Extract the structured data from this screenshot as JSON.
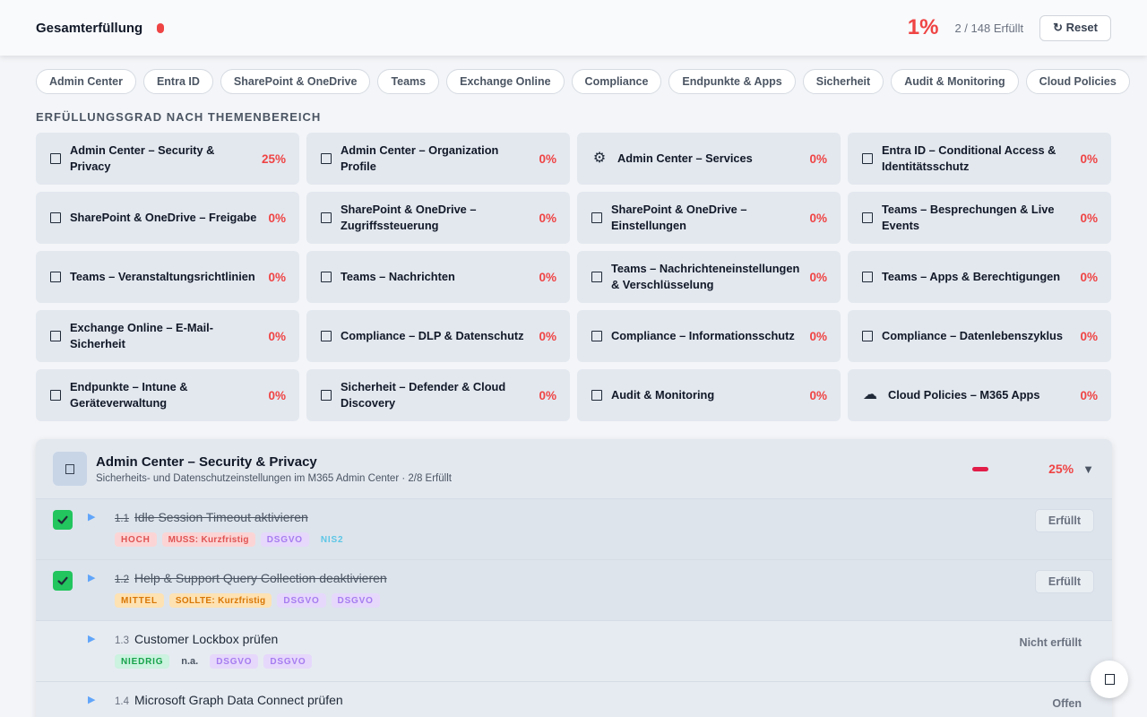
{
  "header": {
    "title": "Gesamterfüllung",
    "percent": "1%",
    "count": "2 / 148 Erfüllt",
    "reset_label": "↻ Reset"
  },
  "tabs": [
    "Admin Center",
    "Entra ID",
    "SharePoint & OneDrive",
    "Teams",
    "Exchange Online",
    "Compliance",
    "Endpunkte & Apps",
    "Sicherheit",
    "Audit & Monitoring",
    "Cloud Policies"
  ],
  "section_title": "ERFÜLLUNGSGRAD NACH THEMENBEREICH",
  "cards": [
    {
      "label": "Admin Center – Security & Privacy",
      "pct": "25%",
      "icon": "square-icon"
    },
    {
      "label": "Admin Center – Organization Profile",
      "pct": "0%",
      "icon": "square-icon"
    },
    {
      "label": "Admin Center – Services",
      "pct": "0%",
      "icon": "gear-icon",
      "glyph": "⚙"
    },
    {
      "label": "Entra ID – Conditional Access & Identitätsschutz",
      "pct": "0%",
      "icon": "square-icon"
    },
    {
      "label": "SharePoint & OneDrive – Freigabe",
      "pct": "0%",
      "icon": "square-icon"
    },
    {
      "label": "SharePoint & OneDrive – Zugriffssteuerung",
      "pct": "0%",
      "icon": "square-icon"
    },
    {
      "label": "SharePoint & OneDrive – Einstellungen",
      "pct": "0%",
      "icon": "square-icon"
    },
    {
      "label": "Teams – Besprechungen & Live Events",
      "pct": "0%",
      "icon": "square-icon"
    },
    {
      "label": "Teams – Veranstaltungsrichtlinien",
      "pct": "0%",
      "icon": "square-icon"
    },
    {
      "label": "Teams – Nachrichten",
      "pct": "0%",
      "icon": "square-icon"
    },
    {
      "label": "Teams – Nachrichteneinstellungen & Verschlüsselung",
      "pct": "0%",
      "icon": "square-icon"
    },
    {
      "label": "Teams – Apps & Berechtigungen",
      "pct": "0%",
      "icon": "square-icon"
    },
    {
      "label": "Exchange Online – E-Mail-Sicherheit",
      "pct": "0%",
      "icon": "square-icon"
    },
    {
      "label": "Compliance – DLP & Datenschutz",
      "pct": "0%",
      "icon": "square-icon"
    },
    {
      "label": "Compliance – Informationsschutz",
      "pct": "0%",
      "icon": "square-icon"
    },
    {
      "label": "Compliance – Datenlebenszyklus",
      "pct": "0%",
      "icon": "square-icon"
    },
    {
      "label": "Endpunkte – Intune & Geräteverwaltung",
      "pct": "0%",
      "icon": "square-icon"
    },
    {
      "label": "Sicherheit – Defender & Cloud Discovery",
      "pct": "0%",
      "icon": "square-icon"
    },
    {
      "label": "Audit & Monitoring",
      "pct": "0%",
      "icon": "square-icon"
    },
    {
      "label": "Cloud Policies – M365 Apps",
      "pct": "0%",
      "icon": "cloud-icon",
      "glyph": "☁"
    }
  ],
  "panel": {
    "title": "Admin Center – Security & Privacy",
    "subtitle": "Sicherheits- und Datenschutzeinstellungen im M365 Admin Center · 2/8 Erfüllt",
    "percent": "25%",
    "progress": 0.25,
    "caret": "▼",
    "items": [
      {
        "num": "1.1",
        "text": "Idle Session Timeout aktivieren",
        "done": true,
        "status": "Erfüllt",
        "tags": [
          {
            "t": "HOCH",
            "c": "hoch"
          },
          {
            "t": "MUSS: Kurzfristig",
            "c": "muss"
          },
          {
            "t": "DSGVO",
            "c": "dsgvo"
          },
          {
            "t": "NIS2",
            "c": "nis2"
          }
        ]
      },
      {
        "num": "1.2",
        "text": "Help & Support Query Collection deaktivieren",
        "done": true,
        "status": "Erfüllt",
        "tags": [
          {
            "t": "MITTEL",
            "c": "mittel"
          },
          {
            "t": "SOLLTE: Kurzfristig",
            "c": "sollte"
          },
          {
            "t": "DSGVO",
            "c": "dsgvo"
          },
          {
            "t": "DSGVO",
            "c": "dsgvo"
          }
        ]
      },
      {
        "num": "1.3",
        "text": "Customer Lockbox prüfen",
        "done": false,
        "status": "Nicht erfüllt",
        "tags": [
          {
            "t": "NIEDRIG",
            "c": "niedrig"
          },
          {
            "t": "n.a.",
            "c": "na"
          },
          {
            "t": "DSGVO",
            "c": "dsgvo"
          },
          {
            "t": "DSGVO",
            "c": "dsgvo"
          }
        ]
      },
      {
        "num": "1.4",
        "text": "Microsoft Graph Data Connect prüfen",
        "done": false,
        "status": "Offen",
        "tags": []
      }
    ]
  }
}
